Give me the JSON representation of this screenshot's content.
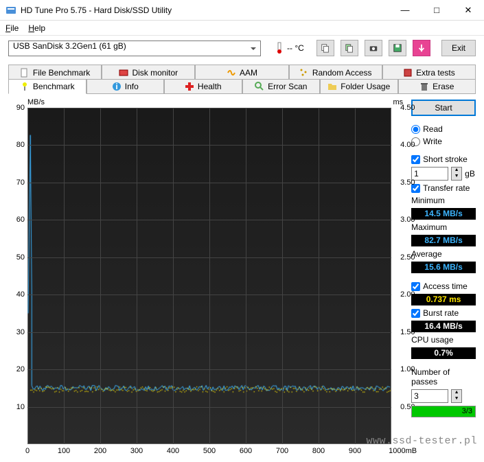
{
  "window": {
    "title": "HD Tune Pro 5.75 - Hard Disk/SSD Utility"
  },
  "menu": {
    "file": "File",
    "help": "Help"
  },
  "toolbar": {
    "drive": "USB SanDisk 3.2Gen1 (61 gB)",
    "temp": "-- °C",
    "exit": "Exit"
  },
  "tabs_top": [
    "File Benchmark",
    "Disk monitor",
    "AAM",
    "Random Access",
    "Extra tests"
  ],
  "tabs_bottom": [
    "Benchmark",
    "Info",
    "Health",
    "Error Scan",
    "Folder Usage",
    "Erase"
  ],
  "active_tab": "Benchmark",
  "side": {
    "start": "Start",
    "read": "Read",
    "write": "Write",
    "short_stroke": "Short stroke",
    "short_stroke_val": "1",
    "short_stroke_unit": "gB",
    "transfer_rate": "Transfer rate",
    "minimum": "Minimum",
    "minimum_val": "14.5 MB/s",
    "maximum": "Maximum",
    "maximum_val": "82.7 MB/s",
    "average": "Average",
    "average_val": "15.6 MB/s",
    "access_time": "Access time",
    "access_time_val": "0.737 ms",
    "burst_rate": "Burst rate",
    "burst_rate_val": "16.4 MB/s",
    "cpu_usage": "CPU usage",
    "cpu_usage_val": "0.7%",
    "passes": "Number of passes",
    "passes_val": "3",
    "passes_done": "3/3"
  },
  "chart": {
    "y_left_label": "MB/s",
    "y_right_label": "ms",
    "y_left_ticks": [
      90,
      80,
      70,
      60,
      50,
      40,
      30,
      20,
      10
    ],
    "y_right_ticks": [
      "4.50",
      "4.00",
      "3.50",
      "3.00",
      "2.50",
      "2.00",
      "1.50",
      "1.00",
      "0.50"
    ],
    "x_ticks": [
      0,
      100,
      200,
      300,
      400,
      500,
      600,
      700,
      800,
      900
    ],
    "x_unit": "1000mB",
    "y_max": 90,
    "line_color": "#3db5ff",
    "dots_color": "#ffe600",
    "spike_at": 0.008,
    "spike_val": 82.7,
    "baseline_val": 15.0
  },
  "watermark": "www.ssd-tester.pl"
}
